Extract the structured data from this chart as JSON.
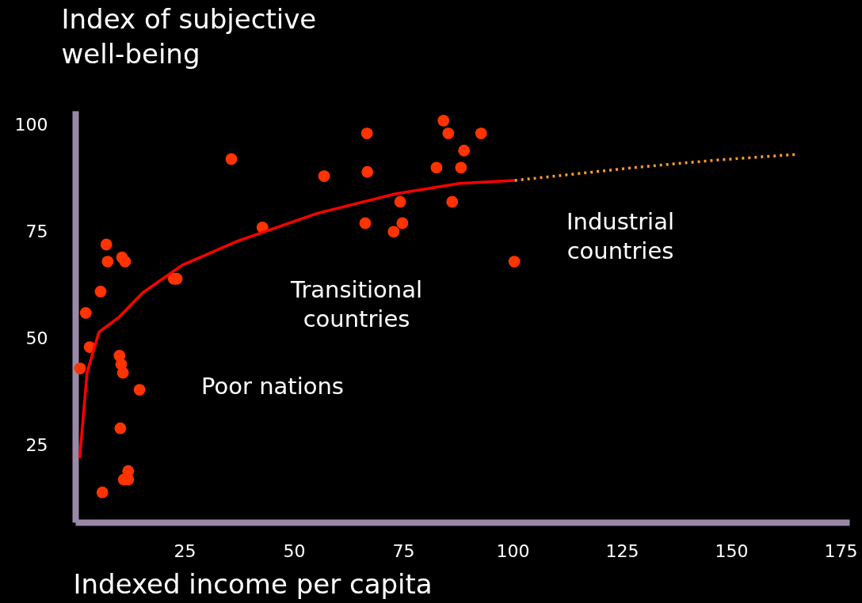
{
  "chart_data": {
    "type": "scatter",
    "xlabel": "Indexed income per capita",
    "ylabel": "Index of  subjective\nwell-being",
    "xlim": [
      0,
      177
    ],
    "ylim": [
      7,
      103.3
    ],
    "xticks": [
      25,
      50,
      75,
      100,
      125,
      150,
      175
    ],
    "yticks": [
      25,
      50,
      75,
      100
    ],
    "grid": false,
    "series": [
      {
        "color": "#ff3300",
        "marker": "circle",
        "x": [
          1.1,
          2.4,
          3.3,
          5.8,
          7.1,
          7.4,
          6.2,
          10.1,
          10.5,
          10.9,
          10.7,
          11.4,
          10.3,
          12.1,
          11.1,
          12.1,
          14.7,
          22.5,
          23.2,
          35.7,
          42.8,
          56.9,
          66.7,
          66.8,
          66.3,
          72.8,
          74.3,
          74.8,
          84.2,
          85.3,
          82.6,
          86.2,
          88.9,
          88.2,
          92.8,
          100.4
        ],
        "values": [
          43,
          56,
          48,
          61,
          72,
          68,
          14,
          46,
          44,
          42,
          69,
          68,
          29,
          19,
          17,
          17,
          38,
          64,
          64,
          92,
          76,
          88,
          98,
          89,
          77,
          75,
          82,
          77,
          101,
          98,
          90,
          82,
          94,
          90,
          98,
          68
        ]
      },
      {
        "type": "line",
        "color": "#ff0000",
        "line_style": "solid",
        "x": [
          1,
          2.7,
          5.4,
          10,
          15.4,
          24.5,
          37.1,
          55.3,
          73.4,
          87.9,
          100.5
        ],
        "values": [
          22,
          42,
          51.5,
          55,
          60.7,
          67.2,
          72.8,
          79.3,
          83.9,
          86.3,
          87
        ]
      },
      {
        "type": "line",
        "color": "#ff9933",
        "line_style": "dotted",
        "x": [
          100.5,
          127.7,
          145.8,
          164.9
        ],
        "values": [
          87,
          90,
          91.7,
          93.1
        ]
      }
    ],
    "annotations": [
      "Poor nations",
      "Transitional\ncountries",
      "Industrial\ncountries"
    ]
  }
}
